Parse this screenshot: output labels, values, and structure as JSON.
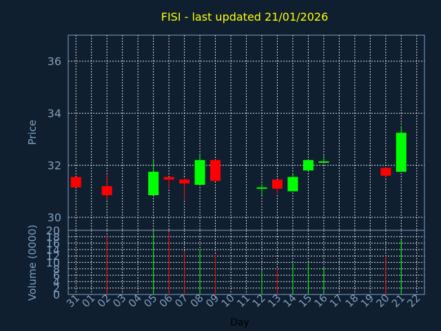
{
  "title": "FISI - last updated 21/01/2026",
  "colors": {
    "background": "#0f1f30",
    "axis": "#7f9fbf",
    "grid": "#ffffff",
    "title": "#ffff00",
    "up": "#00ff00",
    "down": "#ff0000",
    "xlabel": "#000000"
  },
  "chart_data": [
    {
      "type": "candlestick",
      "ylabel": "Price",
      "ylim": [
        29.5,
        37.0
      ],
      "yticks": [
        30,
        32,
        34,
        36
      ],
      "grid": true,
      "categories": [
        "31",
        "01",
        "02",
        "03",
        "04",
        "05",
        "06",
        "07",
        "08",
        "09",
        "10",
        "11",
        "12",
        "13",
        "14",
        "15",
        "16",
        "17",
        "18",
        "19",
        "20",
        "21",
        "22"
      ],
      "candles": [
        {
          "day": "31",
          "open": 31.55,
          "close": 31.15,
          "high": 31.55,
          "low": 31.15
        },
        {
          "day": "02",
          "open": 31.2,
          "close": 30.85,
          "high": 31.65,
          "low": 30.65
        },
        {
          "day": "05",
          "open": 30.85,
          "close": 31.75,
          "high": 32.25,
          "low": 30.85
        },
        {
          "day": "06",
          "open": 31.55,
          "close": 31.45,
          "high": 31.55,
          "low": 31.1
        },
        {
          "day": "07",
          "open": 31.45,
          "close": 31.3,
          "high": 31.5,
          "low": 30.7
        },
        {
          "day": "08",
          "open": 31.25,
          "close": 32.2,
          "high": 32.4,
          "low": 31.25
        },
        {
          "day": "09",
          "open": 32.2,
          "close": 31.4,
          "high": 32.2,
          "low": 31.4
        },
        {
          "day": "12",
          "open": 31.15,
          "close": 31.15,
          "high": 31.3,
          "low": 30.85
        },
        {
          "day": "13",
          "open": 31.45,
          "close": 31.1,
          "high": 31.45,
          "low": 30.9
        },
        {
          "day": "14",
          "open": 31.0,
          "close": 31.55,
          "high": 31.65,
          "low": 31.0
        },
        {
          "day": "15",
          "open": 31.8,
          "close": 32.2,
          "high": 32.2,
          "low": 31.8
        },
        {
          "day": "16",
          "open": 32.15,
          "close": 32.15,
          "high": 32.4,
          "low": 32.1
        },
        {
          "day": "20",
          "open": 31.9,
          "close": 31.6,
          "high": 31.9,
          "low": 31.5
        },
        {
          "day": "21",
          "open": 31.75,
          "close": 33.25,
          "high": 33.5,
          "low": 31.75
        }
      ]
    },
    {
      "type": "bar",
      "ylabel": "Volume (0000)",
      "xlabel": "Day",
      "ylim": [
        0,
        20
      ],
      "yticks": [
        0,
        2,
        4,
        6,
        8,
        10,
        12,
        14,
        16,
        18,
        20
      ],
      "grid": true,
      "categories": [
        "31",
        "01",
        "02",
        "03",
        "04",
        "05",
        "06",
        "07",
        "08",
        "09",
        "10",
        "11",
        "12",
        "13",
        "14",
        "15",
        "16",
        "17",
        "18",
        "19",
        "20",
        "21",
        "22"
      ],
      "bars": [
        {
          "day": "02",
          "value": 18.5,
          "direction": "down"
        },
        {
          "day": "05",
          "value": 19.5,
          "direction": "up"
        },
        {
          "day": "06",
          "value": 19.5,
          "direction": "down"
        },
        {
          "day": "07",
          "value": 13.5,
          "direction": "down"
        },
        {
          "day": "08",
          "value": 14.0,
          "direction": "up"
        },
        {
          "day": "09",
          "value": 12.5,
          "direction": "down"
        },
        {
          "day": "12",
          "value": 7.5,
          "direction": "up"
        },
        {
          "day": "13",
          "value": 8.0,
          "direction": "down"
        },
        {
          "day": "14",
          "value": 9.5,
          "direction": "up"
        },
        {
          "day": "15",
          "value": 9.5,
          "direction": "up"
        },
        {
          "day": "16",
          "value": 8.5,
          "direction": "up"
        },
        {
          "day": "20",
          "value": 12.0,
          "direction": "down"
        },
        {
          "day": "21",
          "value": 17.0,
          "direction": "up"
        }
      ]
    }
  ]
}
